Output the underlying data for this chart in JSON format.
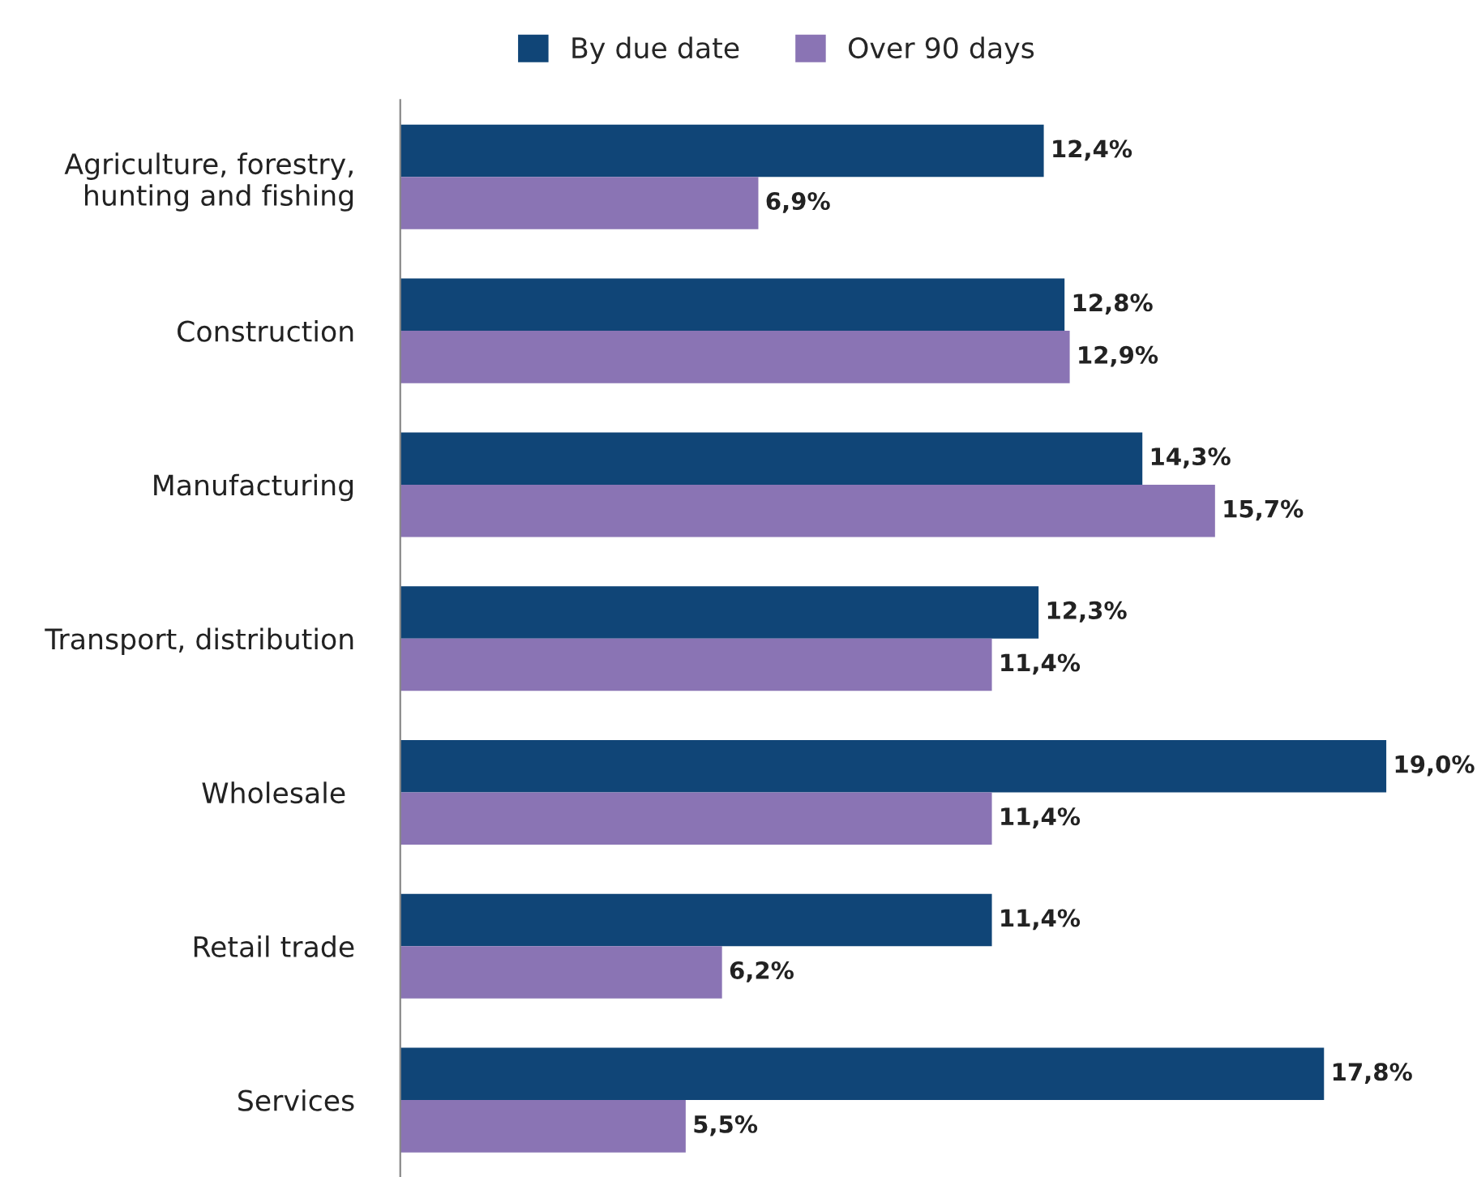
{
  "chart_data": {
    "type": "bar",
    "orientation": "horizontal",
    "categories": [
      "Agriculture, forestry,\nhunting and fishing",
      "Construction",
      "Manufacturing",
      "Transport, distribution",
      "Wholesale ",
      "Retail trade",
      "Services"
    ],
    "series": [
      {
        "name": "By due date",
        "color": "#104577",
        "values": [
          12.4,
          12.8,
          14.3,
          12.3,
          19.0,
          11.4,
          17.8
        ],
        "value_labels": [
          "12,4%",
          "12,8%",
          "14,3%",
          "12,3%",
          "19,0%",
          "11,4%",
          "17,8%"
        ]
      },
      {
        "name": "Over 90 days",
        "color": "#8a74b4",
        "values": [
          6.9,
          12.9,
          15.7,
          11.4,
          11.4,
          6.2,
          5.5
        ],
        "value_labels": [
          "6,9%",
          "12,9%",
          "15,7%",
          "11,4%",
          "11,4%",
          "6,2%",
          "5,5%"
        ]
      }
    ],
    "legend": "top",
    "tick_labels": "y",
    "grid": false
  }
}
